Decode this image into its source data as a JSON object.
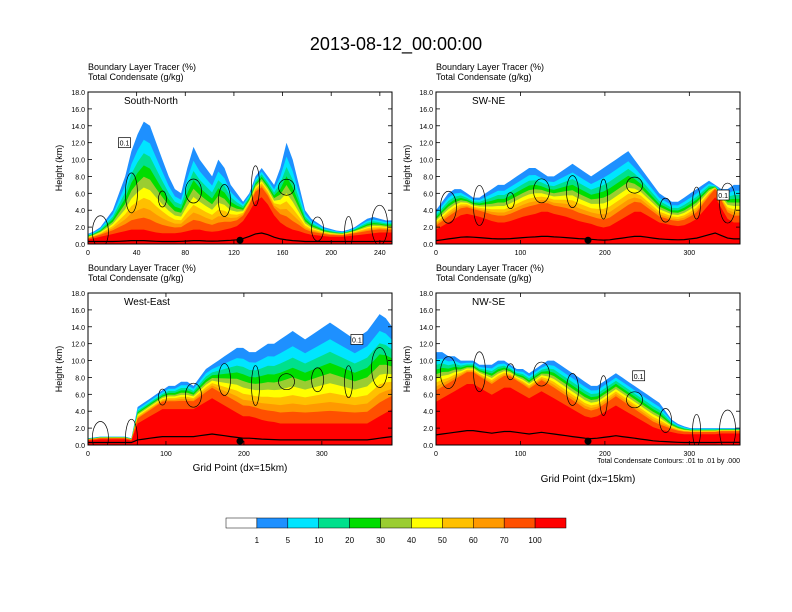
{
  "title": "2013-08-12_00:00:00",
  "contour_note": "Total Condensate Contours: .01 to .01 by .000",
  "colorbar": {
    "levels": [
      "1",
      "5",
      "10",
      "20",
      "30",
      "40",
      "50",
      "60",
      "70",
      "100"
    ],
    "colors": [
      "#ffffff",
      "#1e90ff",
      "#00e5ff",
      "#00e08c",
      "#00dd00",
      "#9acd32",
      "#ffff00",
      "#ffc000",
      "#ff9900",
      "#ff5000",
      "#ff0000"
    ]
  },
  "chart_data": [
    {
      "type": "contour",
      "header_line1": "Boundary Layer Tracer   (%)",
      "header_line2": "Total Condensate   (g/kg)",
      "panel_label": "South-North",
      "ylabel": "Height (km)",
      "xlabel": "",
      "xlim": [
        0,
        250
      ],
      "ylim": [
        0,
        18
      ],
      "xticks": [
        "0",
        "40",
        "80",
        "120",
        "160",
        "200",
        "240"
      ],
      "yticks": [
        "0.0",
        "2.0",
        "4.0",
        "6.0",
        "8.0",
        "10.0",
        "12.0",
        "14.0",
        "16.0",
        "18.0"
      ],
      "marker_x": 125,
      "contour_box_label": "0.1",
      "contour_box_at": [
        30,
        12
      ],
      "top_km": [
        1.2,
        1.5,
        2,
        3,
        4,
        6,
        8,
        11,
        13,
        14.5,
        14,
        12,
        10,
        8,
        6.5,
        6,
        9,
        11.5,
        10,
        9,
        8,
        10,
        9,
        7,
        6,
        5,
        6,
        8,
        9,
        8,
        7,
        9,
        12,
        10,
        7,
        4,
        3,
        2.5,
        2,
        1.8,
        1.6,
        1.5,
        1.7,
        2,
        2.5,
        3,
        3.2,
        3,
        2.8,
        2.8
      ],
      "bl_km": [
        0.6,
        0.8,
        1,
        1.2,
        1.4,
        1.6,
        1.8,
        2,
        2,
        2,
        1.8,
        1.6,
        1.5,
        1.5,
        1.5,
        1.6,
        1.8,
        2,
        2,
        1.8,
        1.7,
        1.8,
        2,
        2.2,
        2.5,
        3.2,
        4.5,
        6,
        6.5,
        5.5,
        4,
        3,
        2.4,
        2,
        1.8,
        1.5,
        1.3,
        1.2,
        1.1,
        1,
        1,
        1,
        1.1,
        1.2,
        1.3,
        1.4,
        1.5,
        1.6,
        1.6,
        1.6
      ]
    },
    {
      "type": "contour",
      "header_line1": "Boundary Layer Tracer   (%)",
      "header_line2": "Total Condensate   (g/kg)",
      "panel_label": "SW-NE",
      "ylabel": "Height (km)",
      "xlabel": "",
      "xlim": [
        0,
        360
      ],
      "ylim": [
        0,
        18
      ],
      "xticks": [
        "0",
        "100",
        "200",
        "300"
      ],
      "yticks": [
        "0.0",
        "2.0",
        "4.0",
        "6.0",
        "8.0",
        "10.0",
        "12.0",
        "14.0",
        "16.0",
        "18.0"
      ],
      "marker_x": 180,
      "contour_box_label": "0.1",
      "contour_box_at": [
        340,
        5.8
      ],
      "top_km": [
        4,
        5,
        6,
        6.5,
        6.5,
        6,
        5.5,
        5.5,
        6,
        6.5,
        7,
        7,
        7.5,
        8,
        8.5,
        9,
        9,
        8.5,
        8,
        8,
        8.5,
        9,
        9.5,
        9,
        8.5,
        8,
        8.5,
        9,
        9.5,
        10,
        10.5,
        11,
        10,
        9,
        8,
        7,
        6,
        5.5,
        5,
        5,
        5.5,
        6,
        6.5,
        7,
        7.5,
        7,
        6.5,
        6.5,
        7,
        7
      ],
      "bl_km": [
        2,
        2.5,
        3,
        3.5,
        4,
        4.2,
        4,
        3.8,
        3.5,
        3.2,
        3,
        3,
        3.2,
        3.5,
        3.8,
        4,
        4.2,
        4.5,
        4.5,
        4.2,
        4,
        3.8,
        3.5,
        3.2,
        3,
        2.8,
        2.5,
        2.3,
        2.5,
        3,
        3.5,
        4,
        4.5,
        4.5,
        4,
        3.5,
        3,
        2.8,
        2.6,
        2.5,
        2.6,
        3,
        3.5,
        4.5,
        5.5,
        6.5,
        5,
        3.5,
        3,
        3
      ]
    },
    {
      "type": "contour",
      "header_line1": "Boundary Layer Tracer   (%)",
      "header_line2": "Total Condensate   (g/kg)",
      "panel_label": "West-East",
      "ylabel": "Height (km)",
      "xlabel": "Grid Point (dx=15km)",
      "xlim": [
        0,
        390
      ],
      "ylim": [
        0,
        18
      ],
      "xticks": [
        "0",
        "100",
        "200",
        "300"
      ],
      "yticks": [
        "0.0",
        "2.0",
        "4.0",
        "6.0",
        "8.0",
        "10.0",
        "12.0",
        "14.0",
        "16.0",
        "18.0"
      ],
      "marker_x": 195,
      "contour_box_label": "0.1",
      "contour_box_at": [
        345,
        12.5
      ],
      "top_km": [
        0.8,
        0.9,
        1,
        1,
        1,
        1,
        1,
        0.8,
        4.5,
        5,
        5.5,
        6,
        6.5,
        7,
        7,
        7.5,
        7.5,
        7,
        8,
        9,
        9.5,
        10,
        10.5,
        11,
        11.5,
        11.5,
        11,
        11,
        11.5,
        12,
        12,
        12.5,
        13,
        13.5,
        13,
        12.5,
        13,
        13.5,
        14,
        14.5,
        14,
        13.5,
        13,
        12.5,
        13,
        13.5,
        14.5,
        15.5,
        15,
        14
      ],
      "bl_km": [
        0.6,
        0.7,
        0.8,
        0.8,
        0.8,
        0.8,
        0.8,
        0.6,
        3,
        3.5,
        4,
        4.5,
        5,
        5,
        5,
        5,
        5,
        5,
        5.5,
        6,
        6.5,
        6,
        5.5,
        5,
        4.5,
        4,
        4,
        3.8,
        3.5,
        3.3,
        3.2,
        3,
        3,
        3,
        3,
        3,
        3,
        3,
        3,
        3,
        3,
        3,
        3,
        3,
        3,
        3,
        3.5,
        4,
        4.5,
        5
      ]
    },
    {
      "type": "contour",
      "header_line1": "Boundary Layer Tracer   (%)",
      "header_line2": "Total Condensate   (g/kg)",
      "panel_label": "NW-SE",
      "ylabel": "Height (km)",
      "xlabel": "Grid Point (dx=15km)",
      "xlim": [
        0,
        360
      ],
      "ylim": [
        0,
        18
      ],
      "xticks": [
        "0",
        "100",
        "200",
        "300"
      ],
      "yticks": [
        "0.0",
        "2.0",
        "4.0",
        "6.0",
        "8.0",
        "10.0",
        "12.0",
        "14.0",
        "16.0",
        "18.0"
      ],
      "marker_x": 180,
      "contour_box_label": "0.1",
      "contour_box_at": [
        240,
        8.2
      ],
      "top_km": [
        11,
        11,
        10.5,
        10.5,
        10,
        10,
        10,
        9.5,
        9.5,
        9.5,
        10,
        10,
        9.5,
        9,
        9,
        8.5,
        9,
        9.5,
        10,
        10,
        9.5,
        9,
        8.5,
        8,
        7.5,
        7,
        7,
        7.5,
        8,
        8.5,
        8,
        7.5,
        7,
        6.5,
        6,
        5.5,
        5,
        4,
        3,
        2.5,
        2.2,
        2,
        2,
        2,
        2,
        2,
        2,
        2,
        2,
        2
      ],
      "bl_km": [
        6,
        6.5,
        7,
        7.5,
        8,
        8.5,
        8.5,
        8,
        7.5,
        7,
        7.5,
        8,
        8,
        7.5,
        7,
        6.5,
        7,
        7.5,
        7,
        6.5,
        6,
        5.5,
        5,
        4.5,
        4,
        3.8,
        4,
        4.5,
        5,
        5.5,
        5,
        4.5,
        4,
        3.5,
        3,
        2.5,
        2.2,
        2,
        1.8,
        1.6,
        1.5,
        1.5,
        1.5,
        1.5,
        1.5,
        1.5,
        1.6,
        1.6,
        1.6,
        1.6
      ]
    }
  ]
}
